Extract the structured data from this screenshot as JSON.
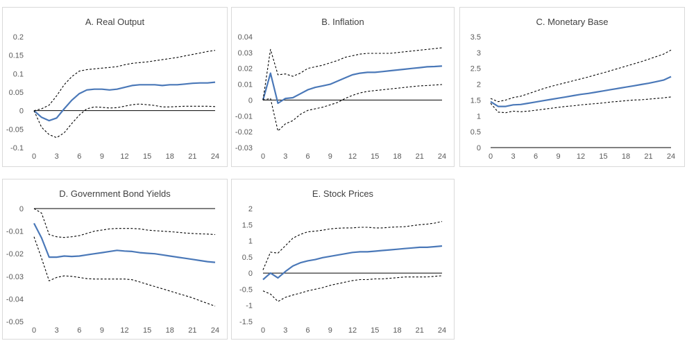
{
  "colors": {
    "irf": "#4a78b8",
    "band": "#000000",
    "zero": "#000000",
    "text": "#595959",
    "border": "#d9d9d9"
  },
  "chart_data": [
    {
      "type": "line",
      "title": "A. Real Output",
      "x": [
        0,
        1,
        2,
        3,
        4,
        5,
        6,
        7,
        8,
        9,
        10,
        11,
        12,
        13,
        14,
        15,
        16,
        17,
        18,
        19,
        20,
        21,
        22,
        23,
        24
      ],
      "xticks": [
        0,
        3,
        6,
        9,
        12,
        15,
        18,
        21,
        24
      ],
      "yticks": [
        "0.2",
        "0.15",
        "0.1",
        "0.05",
        "0",
        "-0.05",
        "-0.1"
      ],
      "ylim": [
        -0.1,
        0.2
      ],
      "series": [
        {
          "style": "solid",
          "values": [
            0,
            -0.018,
            -0.027,
            -0.02,
            0.005,
            0.028,
            0.046,
            0.056,
            0.058,
            0.058,
            0.056,
            0.058,
            0.063,
            0.068,
            0.07,
            0.07,
            0.07,
            0.068,
            0.07,
            0.07,
            0.072,
            0.074,
            0.075,
            0.075,
            0.077
          ]
        },
        {
          "style": "dashed",
          "values": [
            0,
            0.005,
            0.015,
            0.04,
            0.07,
            0.092,
            0.107,
            0.111,
            0.113,
            0.115,
            0.117,
            0.119,
            0.124,
            0.128,
            0.13,
            0.132,
            0.135,
            0.138,
            0.141,
            0.144,
            0.148,
            0.152,
            0.156,
            0.16,
            0.163
          ]
        },
        {
          "style": "dashed",
          "values": [
            0,
            -0.045,
            -0.065,
            -0.073,
            -0.06,
            -0.035,
            -0.012,
            0.005,
            0.01,
            0.009,
            0.007,
            0.008,
            0.012,
            0.016,
            0.018,
            0.016,
            0.014,
            0.01,
            0.01,
            0.011,
            0.012,
            0.012,
            0.012,
            0.012,
            0.011
          ]
        }
      ]
    },
    {
      "type": "line",
      "title": "B. Inflation",
      "x": [
        0,
        1,
        2,
        3,
        4,
        5,
        6,
        7,
        8,
        9,
        10,
        11,
        12,
        13,
        14,
        15,
        16,
        17,
        18,
        19,
        20,
        21,
        22,
        23,
        24
      ],
      "xticks": [
        0,
        3,
        6,
        9,
        12,
        15,
        18,
        21,
        24
      ],
      "yticks": [
        "0.04",
        "0.03",
        "0.02",
        "0.01",
        "0",
        "-0.01",
        "-0.02",
        "-0.03"
      ],
      "ylim": [
        -0.03,
        0.04
      ],
      "series": [
        {
          "style": "solid",
          "values": [
            0,
            0.017,
            -0.002,
            0.001,
            0.0015,
            0.004,
            0.0065,
            0.008,
            0.009,
            0.01,
            0.012,
            0.014,
            0.016,
            0.017,
            0.0175,
            0.0175,
            0.018,
            0.0185,
            0.019,
            0.0195,
            0.02,
            0.0205,
            0.021,
            0.0212,
            0.0215
          ]
        },
        {
          "style": "dashed",
          "values": [
            0,
            0.032,
            0.016,
            0.0165,
            0.015,
            0.017,
            0.02,
            0.021,
            0.022,
            0.0235,
            0.025,
            0.027,
            0.028,
            0.029,
            0.0295,
            0.0295,
            0.0295,
            0.0295,
            0.03,
            0.0305,
            0.031,
            0.0315,
            0.032,
            0.0325,
            0.033
          ]
        },
        {
          "style": "dashed",
          "values": [
            0,
            0.001,
            -0.0195,
            -0.015,
            -0.013,
            -0.009,
            -0.0065,
            -0.0055,
            -0.0045,
            -0.003,
            -0.0015,
            0.001,
            0.003,
            0.0045,
            0.0055,
            0.006,
            0.0065,
            0.007,
            0.0075,
            0.008,
            0.0085,
            0.009,
            0.0092,
            0.0095,
            0.0098
          ]
        }
      ]
    },
    {
      "type": "line",
      "title": "C. Monetary Base",
      "x": [
        0,
        1,
        2,
        3,
        4,
        5,
        6,
        7,
        8,
        9,
        10,
        11,
        12,
        13,
        14,
        15,
        16,
        17,
        18,
        19,
        20,
        21,
        22,
        23,
        24
      ],
      "xticks": [
        0,
        3,
        6,
        9,
        12,
        15,
        18,
        21,
        24
      ],
      "yticks": [
        "3.5",
        "3",
        "2.5",
        "2",
        "1.5",
        "1",
        "0.5",
        "0"
      ],
      "ylim": [
        0,
        3.5
      ],
      "series": [
        {
          "style": "solid",
          "values": [
            1.45,
            1.3,
            1.3,
            1.35,
            1.36,
            1.4,
            1.44,
            1.48,
            1.52,
            1.56,
            1.6,
            1.64,
            1.68,
            1.71,
            1.75,
            1.79,
            1.83,
            1.87,
            1.91,
            1.95,
            1.99,
            2.03,
            2.08,
            2.13,
            2.24
          ]
        },
        {
          "style": "dashed",
          "values": [
            1.55,
            1.45,
            1.5,
            1.58,
            1.62,
            1.7,
            1.78,
            1.86,
            1.93,
            1.99,
            2.05,
            2.11,
            2.17,
            2.23,
            2.3,
            2.36,
            2.43,
            2.5,
            2.57,
            2.64,
            2.71,
            2.79,
            2.87,
            2.95,
            3.08
          ]
        },
        {
          "style": "dashed",
          "values": [
            1.4,
            1.12,
            1.1,
            1.15,
            1.13,
            1.15,
            1.18,
            1.21,
            1.24,
            1.27,
            1.3,
            1.32,
            1.35,
            1.37,
            1.39,
            1.41,
            1.44,
            1.46,
            1.48,
            1.5,
            1.51,
            1.53,
            1.55,
            1.57,
            1.6
          ]
        }
      ]
    },
    {
      "type": "line",
      "title": "D. Government Bond Yields",
      "x": [
        0,
        1,
        2,
        3,
        4,
        5,
        6,
        7,
        8,
        9,
        10,
        11,
        12,
        13,
        14,
        15,
        16,
        17,
        18,
        19,
        20,
        21,
        22,
        23,
        24
      ],
      "xticks": [
        0,
        3,
        6,
        9,
        12,
        15,
        18,
        21,
        24
      ],
      "yticks": [
        "0",
        "-0.01",
        "-0.02",
        "-0.03",
        "-0.04",
        "-0.05"
      ],
      "ylim": [
        -0.05,
        0
      ],
      "series": [
        {
          "style": "solid",
          "values": [
            -0.0065,
            -0.013,
            -0.0215,
            -0.0215,
            -0.021,
            -0.0212,
            -0.021,
            -0.0205,
            -0.02,
            -0.0195,
            -0.019,
            -0.0185,
            -0.0188,
            -0.019,
            -0.0195,
            -0.0198,
            -0.02,
            -0.0205,
            -0.021,
            -0.0215,
            -0.022,
            -0.0225,
            -0.023,
            -0.0235,
            -0.0238
          ]
        },
        {
          "style": "dashed",
          "values": [
            0,
            -0.002,
            -0.0115,
            -0.0125,
            -0.0128,
            -0.0125,
            -0.012,
            -0.011,
            -0.01,
            -0.0095,
            -0.009,
            -0.0088,
            -0.0088,
            -0.0088,
            -0.009,
            -0.0095,
            -0.0098,
            -0.01,
            -0.0102,
            -0.0105,
            -0.0108,
            -0.011,
            -0.0112,
            -0.0113,
            -0.0115
          ]
        },
        {
          "style": "dashed",
          "values": [
            -0.0125,
            -0.022,
            -0.032,
            -0.0305,
            -0.0298,
            -0.03,
            -0.0305,
            -0.031,
            -0.0312,
            -0.0312,
            -0.0312,
            -0.0312,
            -0.0312,
            -0.0315,
            -0.0325,
            -0.0335,
            -0.0345,
            -0.0355,
            -0.0365,
            -0.0375,
            -0.0385,
            -0.0395,
            -0.0408,
            -0.042,
            -0.0432
          ]
        }
      ]
    },
    {
      "type": "line",
      "title": "E. Stock Prices",
      "x": [
        0,
        1,
        2,
        3,
        4,
        5,
        6,
        7,
        8,
        9,
        10,
        11,
        12,
        13,
        14,
        15,
        16,
        17,
        18,
        19,
        20,
        21,
        22,
        23,
        24
      ],
      "xticks": [
        0,
        3,
        6,
        9,
        12,
        15,
        18,
        21,
        24
      ],
      "yticks": [
        "2",
        "1.5",
        "1",
        "0.5",
        "0",
        "-0.5",
        "-1",
        "-1.5"
      ],
      "ylim": [
        -1.5,
        2
      ],
      "series": [
        {
          "style": "solid",
          "values": [
            -0.2,
            0,
            -0.15,
            0.05,
            0.22,
            0.32,
            0.38,
            0.42,
            0.48,
            0.52,
            0.56,
            0.6,
            0.64,
            0.66,
            0.66,
            0.68,
            0.7,
            0.72,
            0.74,
            0.76,
            0.78,
            0.8,
            0.8,
            0.82,
            0.84
          ]
        },
        {
          "style": "dashed",
          "values": [
            0.1,
            0.65,
            0.62,
            0.85,
            1.08,
            1.2,
            1.28,
            1.3,
            1.33,
            1.37,
            1.39,
            1.4,
            1.4,
            1.42,
            1.42,
            1.4,
            1.4,
            1.42,
            1.43,
            1.44,
            1.47,
            1.5,
            1.52,
            1.55,
            1.6
          ]
        },
        {
          "style": "dashed",
          "values": [
            -0.55,
            -0.65,
            -0.88,
            -0.75,
            -0.68,
            -0.62,
            -0.55,
            -0.5,
            -0.45,
            -0.38,
            -0.33,
            -0.28,
            -0.23,
            -0.2,
            -0.2,
            -0.18,
            -0.18,
            -0.16,
            -0.14,
            -0.12,
            -0.12,
            -0.12,
            -0.12,
            -0.1,
            -0.08
          ]
        }
      ]
    }
  ]
}
